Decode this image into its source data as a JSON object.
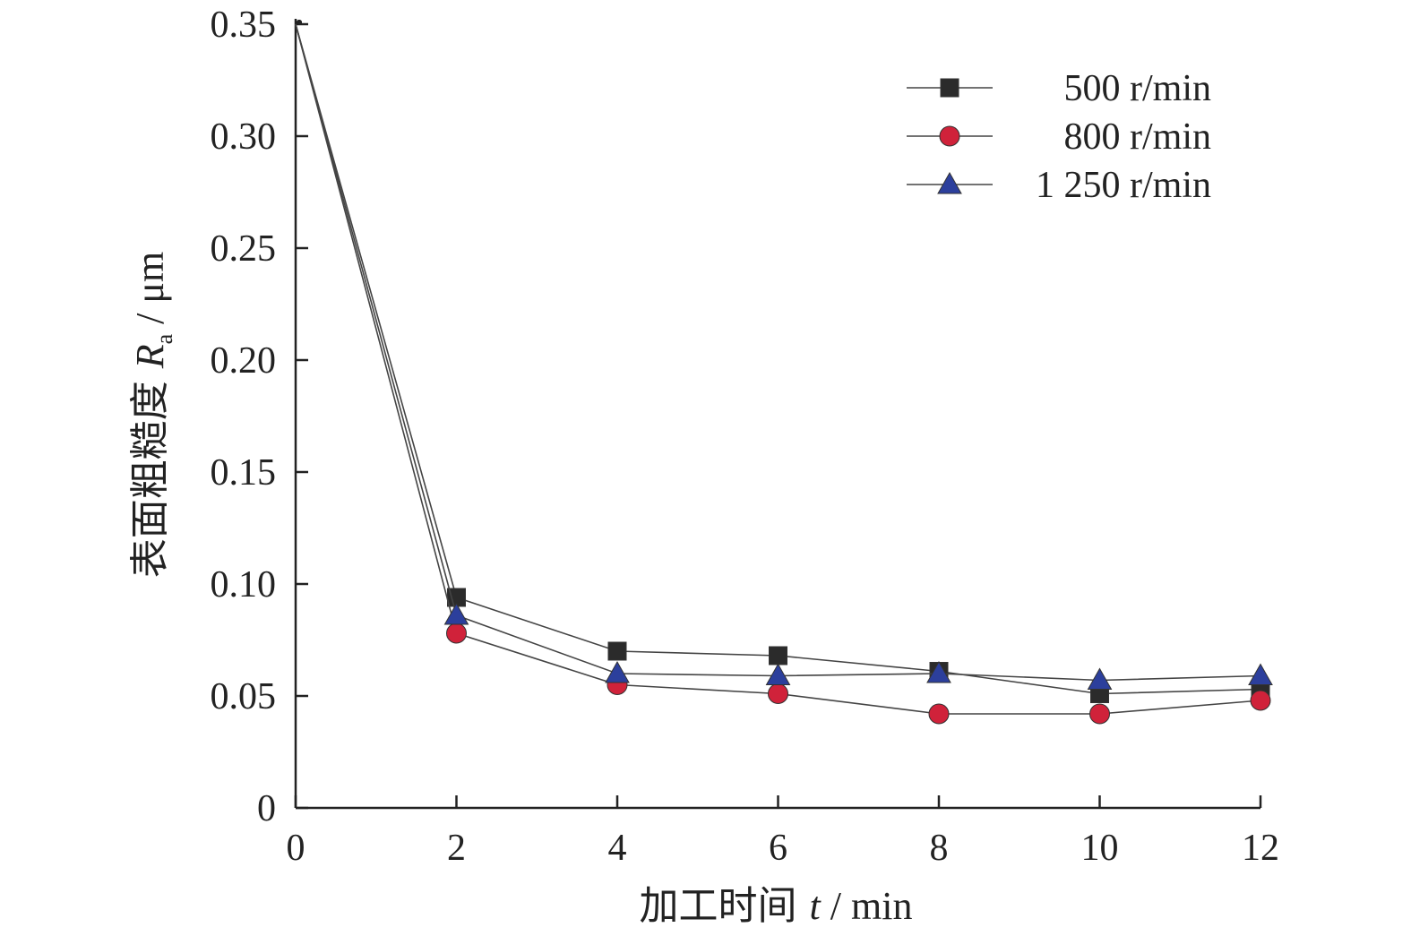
{
  "chart_data": {
    "type": "line",
    "x": [
      0,
      2,
      4,
      6,
      8,
      10,
      12
    ],
    "xlim": [
      0,
      12
    ],
    "ylim": [
      0,
      0.35
    ],
    "xticks": [
      "0",
      "2",
      "4",
      "6",
      "8",
      "10",
      "12"
    ],
    "yticks": [
      "0",
      "0.05",
      "0.10",
      "0.15",
      "0.20",
      "0.25",
      "0.30",
      "0.35"
    ],
    "xlabel": {
      "prefix": "加工时间 ",
      "var": "t",
      "unit": " / min"
    },
    "ylabel": {
      "prefix": "表面粗糙度 ",
      "var": "R",
      "sub": "a",
      "unit": " / μm"
    },
    "grid": false,
    "legend_position": "top-right",
    "series": [
      {
        "name": "500 r/min",
        "marker": "square",
        "color": "#2b2b2b",
        "values": [
          0.35,
          0.094,
          0.07,
          0.068,
          0.061,
          0.051,
          0.053
        ]
      },
      {
        "name": "800 r/min",
        "marker": "circle",
        "color": "#d0223a",
        "values": [
          0.35,
          0.078,
          0.055,
          0.051,
          0.042,
          0.042,
          0.048
        ]
      },
      {
        "name": "1 250 r/min",
        "marker": "triangle",
        "color": "#2c3f9c",
        "values": [
          0.35,
          0.086,
          0.06,
          0.059,
          0.06,
          0.057,
          0.059
        ]
      }
    ]
  }
}
